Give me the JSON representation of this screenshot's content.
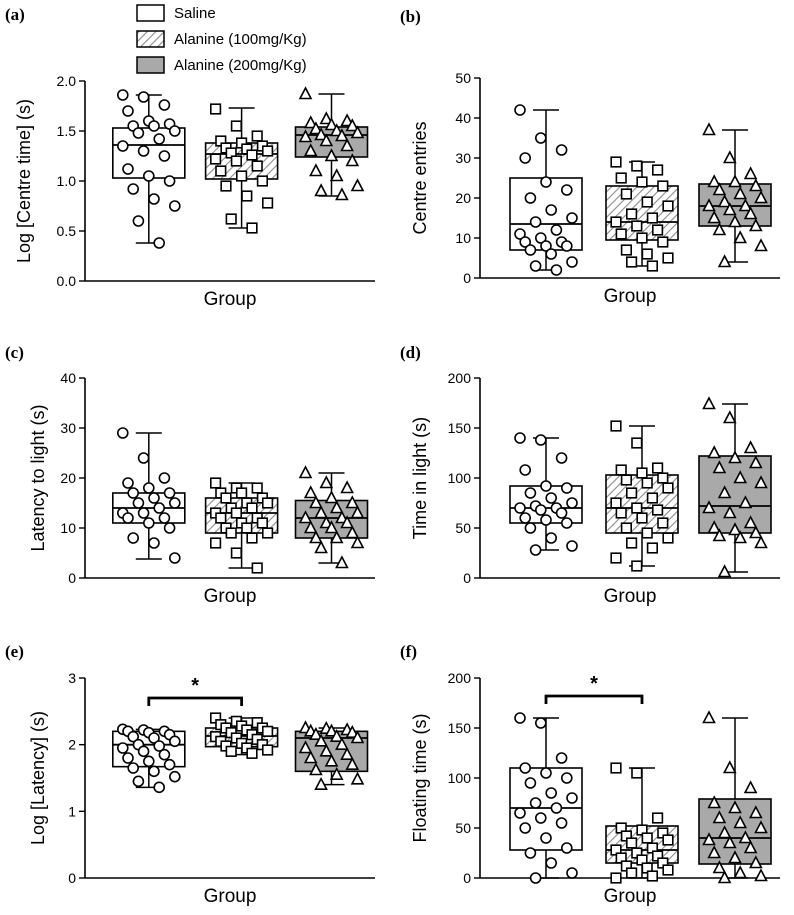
{
  "colors": {
    "saline": "#ffffff",
    "alanine_200": "#a9a9a9",
    "hatch": "#8c8c8c",
    "stroke": "#000000"
  },
  "legend": {
    "items": [
      {
        "label": "Saline",
        "fill": "white"
      },
      {
        "label": "Alanine (100mg/Kg)",
        "fill": "hatch"
      },
      {
        "label": "Alanine (200mg/Kg)",
        "fill": "gray"
      }
    ]
  },
  "chart_data": [
    {
      "panel": "(a)",
      "type": "box",
      "ylabel": "Log [Centre time] (s)",
      "xlabel": "Group",
      "ylim": [
        0,
        2.0
      ],
      "yticks": [
        0,
        0.5,
        1.0,
        1.5,
        2.0
      ],
      "tick_labels": [
        "0.0",
        "0.5",
        "1.0",
        "1.5",
        "2.0"
      ],
      "groups": [
        {
          "name": "Saline",
          "fill": "white",
          "marker": "circle",
          "box": {
            "min": 0.38,
            "q1": 1.03,
            "median": 1.36,
            "q3": 1.53,
            "max": 1.86
          },
          "points": [
            1.86,
            1.84,
            1.76,
            1.7,
            1.6,
            1.57,
            1.55,
            1.55,
            1.5,
            1.48,
            1.42,
            1.35,
            1.3,
            1.25,
            1.12,
            1.05,
            1.0,
            0.92,
            0.82,
            0.75,
            0.6,
            0.38
          ]
        },
        {
          "name": "Alanine (100mg/Kg)",
          "fill": "hatch",
          "marker": "square",
          "box": {
            "min": 0.53,
            "q1": 1.02,
            "median": 1.27,
            "q3": 1.38,
            "max": 1.73
          },
          "points": [
            1.72,
            1.55,
            1.45,
            1.4,
            1.38,
            1.35,
            1.33,
            1.32,
            1.3,
            1.28,
            1.26,
            1.22,
            1.2,
            1.15,
            1.1,
            1.05,
            1.0,
            0.95,
            0.85,
            0.78,
            0.62,
            0.53
          ]
        },
        {
          "name": "Alanine (200mg/Kg)",
          "fill": "gray",
          "marker": "triangle",
          "box": {
            "min": 0.85,
            "q1": 1.24,
            "median": 1.46,
            "q3": 1.54,
            "max": 1.87
          },
          "points": [
            1.87,
            1.62,
            1.6,
            1.58,
            1.56,
            1.55,
            1.52,
            1.5,
            1.48,
            1.46,
            1.45,
            1.44,
            1.4,
            1.35,
            1.3,
            1.25,
            1.2,
            1.1,
            1.05,
            0.95,
            0.9,
            0.86
          ]
        }
      ]
    },
    {
      "panel": "(b)",
      "type": "box",
      "ylabel": "Centre entries",
      "xlabel": "Group",
      "ylim": [
        0,
        50
      ],
      "yticks": [
        0,
        10,
        20,
        30,
        40,
        50
      ],
      "tick_labels": [
        "0",
        "10",
        "20",
        "30",
        "40",
        "50"
      ],
      "groups": [
        {
          "name": "Saline",
          "fill": "white",
          "marker": "circle",
          "box": {
            "min": 2,
            "q1": 7,
            "median": 13.5,
            "q3": 25,
            "max": 42
          },
          "points": [
            42,
            35,
            32,
            30,
            24,
            22,
            20,
            17,
            15,
            14,
            12,
            11,
            10,
            9,
            9,
            8,
            8,
            7,
            6,
            4,
            3,
            2
          ]
        },
        {
          "name": "Alanine (100mg/Kg)",
          "fill": "hatch",
          "marker": "square",
          "box": {
            "min": 3,
            "q1": 9.5,
            "median": 14,
            "q3": 23,
            "max": 29
          },
          "points": [
            29,
            28,
            27,
            25,
            24,
            23,
            21,
            19,
            18,
            16,
            15,
            14,
            13,
            12,
            11,
            10,
            9,
            7,
            6,
            5,
            4,
            3
          ]
        },
        {
          "name": "Alanine (200mg/Kg)",
          "fill": "gray",
          "marker": "triangle",
          "box": {
            "min": 4,
            "q1": 13,
            "median": 18,
            "q3": 23.5,
            "max": 37
          },
          "points": [
            37,
            30,
            26,
            24,
            24,
            23,
            22,
            21,
            20,
            19,
            18,
            18,
            17,
            16,
            15,
            14,
            13,
            12,
            10,
            8,
            4
          ]
        }
      ]
    },
    {
      "panel": "(c)",
      "type": "box",
      "ylabel": "Latency to light (s)",
      "xlabel": "Group",
      "ylim": [
        0,
        40
      ],
      "yticks": [
        0,
        10,
        20,
        30,
        40
      ],
      "tick_labels": [
        "0",
        "10",
        "20",
        "30",
        "40"
      ],
      "groups": [
        {
          "name": "Saline",
          "fill": "white",
          "marker": "circle",
          "box": {
            "min": 3.8,
            "q1": 11,
            "median": 14,
            "q3": 17,
            "max": 29
          },
          "points": [
            29,
            24,
            20,
            19,
            18,
            17,
            17,
            16,
            15,
            15,
            14,
            13,
            13,
            12,
            12,
            11,
            10,
            8,
            7,
            4
          ]
        },
        {
          "name": "Alanine (100mg/Kg)",
          "fill": "hatch",
          "marker": "square",
          "box": {
            "min": 2,
            "q1": 9,
            "median": 13,
            "q3": 16,
            "max": 19
          },
          "points": [
            19,
            18,
            18,
            17,
            17,
            16,
            16,
            15,
            15,
            14,
            14,
            13,
            13,
            12,
            12,
            11,
            11,
            10,
            10,
            9,
            9,
            8,
            7,
            5,
            2
          ]
        },
        {
          "name": "Alanine (200mg/Kg)",
          "fill": "gray",
          "marker": "triangle",
          "box": {
            "min": 3,
            "q1": 8,
            "median": 12,
            "q3": 15.5,
            "max": 21
          },
          "points": [
            21,
            19,
            18,
            17,
            16,
            15,
            15,
            14,
            13,
            13,
            12,
            12,
            11,
            11,
            10,
            10,
            9,
            8,
            8,
            7,
            6,
            3
          ]
        }
      ]
    },
    {
      "panel": "(d)",
      "type": "box",
      "ylabel": "Time in light (s)",
      "xlabel": "Group",
      "ylim": [
        0,
        200
      ],
      "yticks": [
        0,
        50,
        100,
        150,
        200
      ],
      "tick_labels": [
        "0",
        "50",
        "100",
        "150",
        "200"
      ],
      "groups": [
        {
          "name": "Saline",
          "fill": "white",
          "marker": "circle",
          "box": {
            "min": 28,
            "q1": 55,
            "median": 70,
            "q3": 92,
            "max": 140
          },
          "points": [
            140,
            138,
            120,
            108,
            92,
            90,
            85,
            80,
            75,
            72,
            70,
            70,
            68,
            65,
            60,
            58,
            55,
            50,
            40,
            32,
            28
          ]
        },
        {
          "name": "Alanine (100mg/Kg)",
          "fill": "hatch",
          "marker": "square",
          "box": {
            "min": 12,
            "q1": 45,
            "median": 70,
            "q3": 103,
            "max": 152
          },
          "points": [
            152,
            135,
            110,
            108,
            105,
            100,
            98,
            95,
            90,
            85,
            80,
            75,
            70,
            68,
            65,
            60,
            55,
            50,
            45,
            40,
            35,
            30,
            20,
            12
          ]
        },
        {
          "name": "Alanine (200mg/Kg)",
          "fill": "gray",
          "marker": "triangle",
          "box": {
            "min": 6,
            "q1": 45,
            "median": 72,
            "q3": 122,
            "max": 174
          },
          "points": [
            174,
            160,
            130,
            125,
            120,
            115,
            110,
            100,
            95,
            85,
            75,
            70,
            65,
            55,
            50,
            48,
            45,
            42,
            40,
            35,
            6
          ]
        }
      ]
    },
    {
      "panel": "(e)",
      "type": "box",
      "ylabel": "Log [Latency] (s)",
      "xlabel": "Group",
      "ylim": [
        0,
        3
      ],
      "yticks": [
        0,
        1,
        2,
        3
      ],
      "tick_labels": [
        "0",
        "1",
        "2",
        "3"
      ],
      "significance": {
        "label": "*",
        "from": 0,
        "to": 1,
        "y": 2.7
      },
      "groups": [
        {
          "name": "Saline",
          "fill": "white",
          "marker": "circle",
          "box": {
            "min": 1.36,
            "q1": 1.67,
            "median": 2.0,
            "q3": 2.2,
            "max": 2.23
          },
          "points": [
            2.23,
            2.22,
            2.2,
            2.2,
            2.18,
            2.15,
            2.12,
            2.1,
            2.05,
            2.0,
            1.98,
            1.95,
            1.9,
            1.85,
            1.8,
            1.75,
            1.7,
            1.65,
            1.6,
            1.52,
            1.45,
            1.36
          ]
        },
        {
          "name": "Alanine (100mg/Kg)",
          "fill": "hatch",
          "marker": "square",
          "box": {
            "min": 1.85,
            "q1": 1.97,
            "median": 2.13,
            "q3": 2.25,
            "max": 2.4
          },
          "points": [
            2.4,
            2.35,
            2.33,
            2.3,
            2.28,
            2.25,
            2.25,
            2.22,
            2.2,
            2.18,
            2.15,
            2.12,
            2.1,
            2.08,
            2.05,
            2.02,
            2.0,
            1.98,
            1.95,
            1.92,
            1.9,
            1.87
          ]
        },
        {
          "name": "Alanine (200mg/Kg)",
          "fill": "gray",
          "marker": "triangle",
          "box": {
            "min": 1.4,
            "q1": 1.6,
            "median": 2.1,
            "q3": 2.2,
            "max": 2.25
          },
          "points": [
            2.25,
            2.24,
            2.22,
            2.2,
            2.2,
            2.18,
            2.15,
            2.12,
            2.1,
            2.05,
            2.0,
            1.95,
            1.9,
            1.85,
            1.8,
            1.75,
            1.7,
            1.62,
            1.55,
            1.48,
            1.4
          ]
        }
      ]
    },
    {
      "panel": "(f)",
      "type": "box",
      "ylabel": "Floating time (s)",
      "xlabel": "Group",
      "ylim": [
        0,
        200
      ],
      "yticks": [
        0,
        50,
        100,
        150,
        200
      ],
      "tick_labels": [
        "0",
        "50",
        "100",
        "150",
        "200"
      ],
      "significance": {
        "label": "*",
        "from": 0,
        "to": 1,
        "y": 182
      },
      "groups": [
        {
          "name": "Saline",
          "fill": "white",
          "marker": "circle",
          "box": {
            "min": 0,
            "q1": 28,
            "median": 70,
            "q3": 110,
            "max": 160
          },
          "points": [
            160,
            155,
            120,
            110,
            105,
            100,
            95,
            85,
            80,
            75,
            70,
            65,
            60,
            55,
            50,
            40,
            30,
            25,
            15,
            5,
            0
          ]
        },
        {
          "name": "Alanine (100mg/Kg)",
          "fill": "hatch",
          "marker": "square",
          "box": {
            "min": 0,
            "q1": 15,
            "median": 28,
            "q3": 52,
            "max": 110
          },
          "points": [
            110,
            105,
            60,
            50,
            48,
            45,
            42,
            40,
            38,
            35,
            30,
            28,
            25,
            22,
            20,
            18,
            15,
            12,
            10,
            8,
            5,
            2,
            0
          ]
        },
        {
          "name": "Alanine (200mg/Kg)",
          "fill": "gray",
          "marker": "triangle",
          "box": {
            "min": 0,
            "q1": 14,
            "median": 40,
            "q3": 79,
            "max": 160
          },
          "points": [
            160,
            110,
            90,
            75,
            70,
            65,
            60,
            55,
            50,
            45,
            40,
            38,
            35,
            30,
            25,
            20,
            15,
            10,
            5,
            2,
            0
          ]
        }
      ]
    }
  ]
}
